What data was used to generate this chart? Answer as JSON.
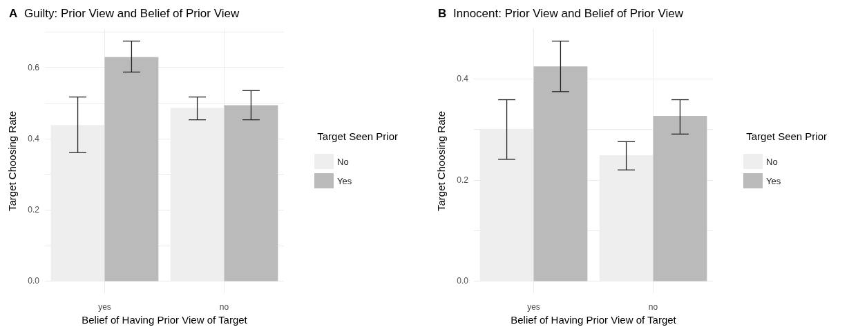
{
  "chart_data": [
    {
      "type": "bar",
      "annotations": [
        "A"
      ],
      "title": "Guilty: Prior View and Belief of Prior View",
      "xlabel": "Belief of Having Prior View of Target",
      "ylabel": "Target Choosing Rate",
      "legend_title": "Target Seen Prior",
      "categories": [
        "yes",
        "no"
      ],
      "series": [
        {
          "name": "No",
          "color": "#eeeeee",
          "values": [
            0.438,
            0.486
          ],
          "errors": [
            [
              0.361,
              0.517
            ],
            [
              0.453,
              0.517
            ]
          ]
        },
        {
          "name": "Yes",
          "color": "#bababa",
          "values": [
            0.629,
            0.494
          ],
          "errors": [
            [
              0.587,
              0.674
            ],
            [
              0.453,
              0.535
            ]
          ]
        }
      ],
      "ylim": [
        -0.034,
        0.708
      ],
      "yticks": [
        {
          "value": 0,
          "label": "0.0"
        },
        {
          "value": 0.1,
          "label": null
        },
        0.2,
        {
          "value": 0.3,
          "label": null
        },
        0.4,
        {
          "value": 0.5,
          "label": null
        },
        0.6,
        {
          "value": 0.7,
          "label": null
        }
      ],
      "grid": true,
      "legend": "right"
    },
    {
      "type": "bar",
      "annotations": [
        "B"
      ],
      "title": "Innocent: Prior View and Belief of Prior View",
      "xlabel": "Belief of Having Prior View of Target",
      "ylabel": "Target Choosing Rate",
      "legend_title": "Target Seen Prior",
      "categories": [
        "yes",
        "no"
      ],
      "series": [
        {
          "name": "No",
          "color": "#eeeeee",
          "values": [
            0.3,
            0.249
          ],
          "errors": [
            [
              0.241,
              0.359
            ],
            [
              0.22,
              0.276
            ]
          ]
        },
        {
          "name": "Yes",
          "color": "#bababa",
          "values": [
            0.425,
            0.327
          ],
          "errors": [
            [
              0.375,
              0.475
            ],
            [
              0.291,
              0.359
            ]
          ]
        }
      ],
      "ylim": [
        -0.024,
        0.499
      ],
      "yticks": [
        {
          "value": 0,
          "label": "0.0"
        },
        {
          "value": 0.1,
          "label": null
        },
        0.2,
        {
          "value": 0.3,
          "label": null
        },
        0.4
      ],
      "grid": true,
      "legend": "right"
    }
  ]
}
